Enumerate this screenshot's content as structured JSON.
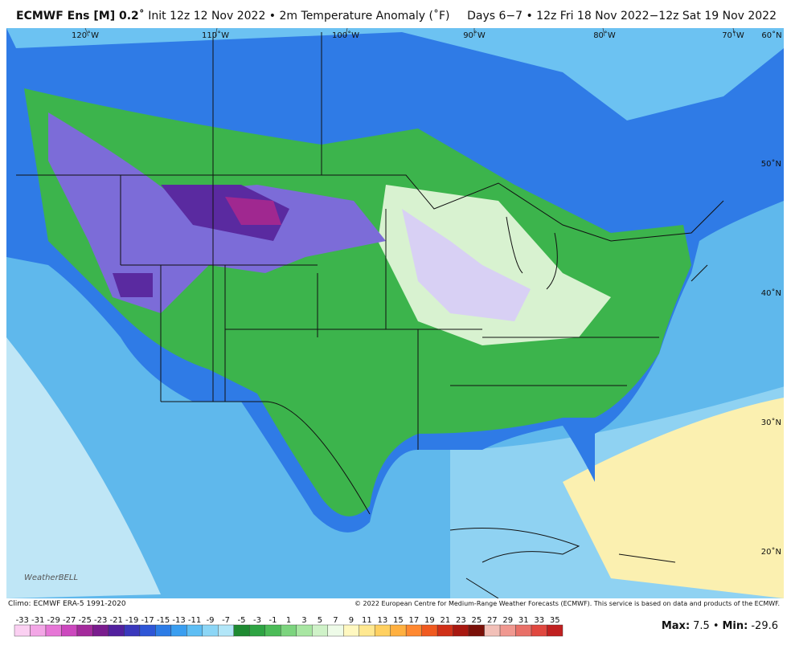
{
  "header": {
    "model": "ECMWF Ens [M] 0.2˚",
    "subtitle": "Init 12z 12 Nov 2022 • 2m Temperature Anomaly (˚F)",
    "valid": "Days 6−7 • 12z Fri 18 Nov 2022−12z Sat 19 Nov 2022"
  },
  "map": {
    "lon_labels": [
      "120˚W",
      "110˚W",
      "100˚W",
      "90˚W",
      "80˚W",
      "70˚W",
      "60˚N"
    ],
    "lat_labels": [
      "50˚N",
      "40˚N",
      "30˚N",
      "20˚N"
    ],
    "logo": "WeatherBELL"
  },
  "footer": {
    "climo": "Climo: ECMWF ERA-5 1991-2020",
    "copyright": "© 2022 European Centre for Medium-Range Weather Forecasts (ECMWF). This service is based on data and products of the ECMWF."
  },
  "legend": {
    "labels": [
      -33,
      -31,
      -29,
      -27,
      -25,
      -23,
      -21,
      -19,
      -17,
      -15,
      -13,
      -11,
      -9,
      -7,
      -5,
      -3,
      -1,
      1,
      3,
      5,
      7,
      9,
      11,
      13,
      15,
      17,
      19,
      21,
      23,
      25,
      27,
      29,
      31,
      33,
      35
    ],
    "colors": [
      "#fbd0f2",
      "#f3a6e6",
      "#e676d6",
      "#cc48be",
      "#a42a9c",
      "#7a1c8e",
      "#52209e",
      "#3a38bc",
      "#2e56d6",
      "#2c7ce6",
      "#3a9ef0",
      "#5ebef4",
      "#8cd6f6",
      "#b2e6f8",
      "#1f8a32",
      "#2ea443",
      "#4cbc58",
      "#7cd47e",
      "#a8e6a2",
      "#cff2c8",
      "#eefbe8",
      "#fff8c0",
      "#ffe890",
      "#ffd060",
      "#ffb040",
      "#ff8830",
      "#f05a20",
      "#d03018",
      "#a81810",
      "#7a1008",
      "#f2c0b8",
      "#f09890",
      "#e87068",
      "#e04840",
      "#c02020"
    ]
  },
  "stats": {
    "max_label": "Max:",
    "max": 7.5,
    "separator": "•",
    "min_label": "Min:",
    "min": -29.6
  }
}
